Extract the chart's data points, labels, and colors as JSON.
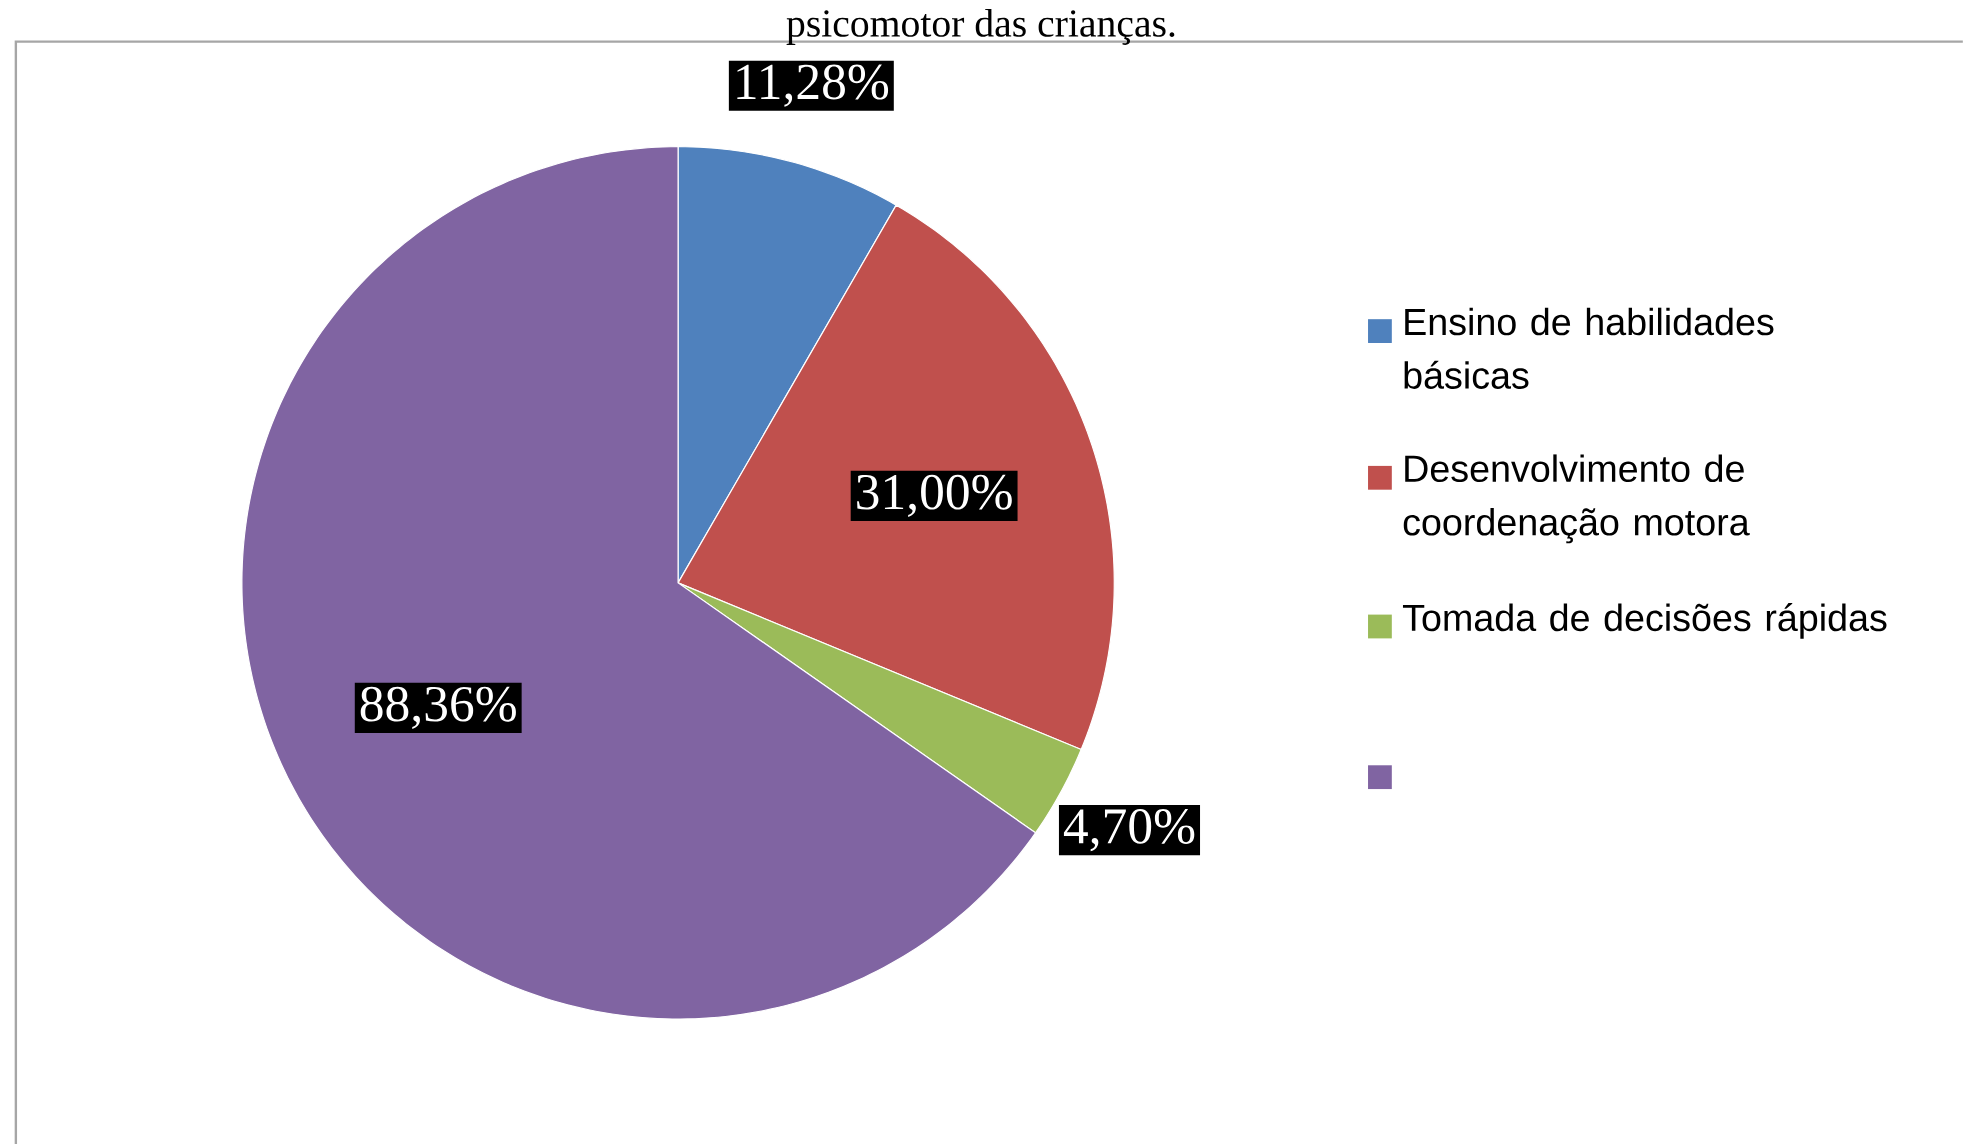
{
  "chart_data": {
    "type": "pie",
    "title": "psicomotor das crianças.",
    "categories": [
      "Ensino de habilidades básicas",
      "Desenvolvimento de coordenação motora",
      "Tomada de decisões rápidas",
      null
    ],
    "values": [
      11.28,
      31.0,
      4.7,
      88.36
    ],
    "value_labels": [
      "11,28%",
      "31,00%",
      "4,70%",
      "88,36%"
    ],
    "colors": [
      "#4f81bd",
      "#c0504d",
      "#9bbb59",
      "#8064a2"
    ],
    "legend": "right"
  }
}
